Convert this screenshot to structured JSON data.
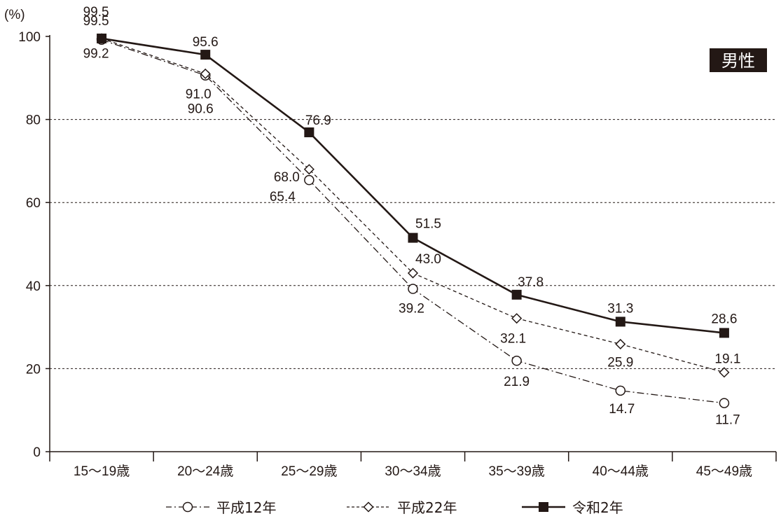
{
  "chart_data": {
    "type": "line",
    "yunit": "(%)",
    "badge": "男性",
    "ylim": [
      0,
      100
    ],
    "yticks": [
      0,
      20,
      40,
      60,
      80,
      100
    ],
    "grid": true,
    "legend_position": "bottom",
    "categories": [
      "15〜19歳",
      "20〜24歳",
      "25〜29歳",
      "30〜34歳",
      "35〜39歳",
      "40〜44歳",
      "45〜49歳"
    ],
    "series": [
      {
        "name": "平成12年",
        "marker": "circle",
        "line_style": "dash-dot",
        "color": "#231815",
        "values": [
          99.2,
          90.6,
          65.4,
          39.2,
          21.9,
          14.7,
          11.7
        ],
        "labels": [
          "99.2",
          "90.6",
          "65.4",
          "39.2",
          "21.9",
          "14.7",
          "11.7"
        ]
      },
      {
        "name": "平成22年",
        "marker": "diamond",
        "line_style": "dashed",
        "color": "#231815",
        "values": [
          99.5,
          91.0,
          68.0,
          43.0,
          32.1,
          25.9,
          19.1
        ],
        "labels": [
          "99.5",
          "91.0",
          "68.0",
          "43.0",
          "32.1",
          "25.9",
          "19.1"
        ]
      },
      {
        "name": "令和2年",
        "marker": "square",
        "line_style": "solid",
        "color": "#231815",
        "values": [
          99.5,
          95.6,
          76.9,
          51.5,
          37.8,
          31.3,
          28.6
        ],
        "labels": [
          "99.5",
          "95.6",
          "76.9",
          "51.5",
          "37.8",
          "31.3",
          "28.6"
        ]
      }
    ]
  }
}
